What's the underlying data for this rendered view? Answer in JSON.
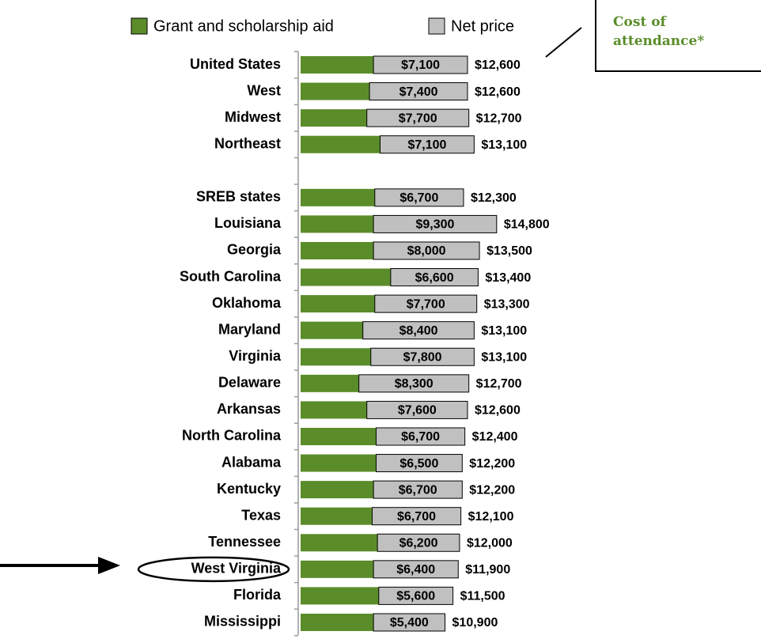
{
  "chart_data": {
    "type": "stacked-barh",
    "categories": [
      "United States",
      "West",
      "Midwest",
      "Northeast",
      null,
      "SREB states",
      "Louisiana",
      "Georgia",
      "South Carolina",
      "Oklahoma",
      "Maryland",
      "Virginia",
      "Delaware",
      "Arkansas",
      "North Carolina",
      "Alabama",
      "Kentucky",
      "Texas",
      "Tennessee",
      "West Virginia",
      "Florida",
      "Mississippi"
    ],
    "series": [
      {
        "name": "Grant and scholarship aid",
        "color": "#5b8c2a",
        "values": [
          5500,
          5200,
          5000,
          6000,
          null,
          5600,
          5500,
          5500,
          6800,
          5600,
          4700,
          5300,
          4400,
          5000,
          5700,
          5700,
          5500,
          5400,
          5800,
          5500,
          5900,
          5500
        ]
      },
      {
        "name": "Net price",
        "color": "#c0c0c0",
        "values": [
          7100,
          7400,
          7700,
          7100,
          null,
          6700,
          9300,
          8000,
          6600,
          7700,
          8400,
          7800,
          8300,
          7600,
          6700,
          6500,
          6700,
          6700,
          6200,
          6400,
          5600,
          5400
        ],
        "value_labels": [
          "$7,100",
          "$7,400",
          "$7,700",
          "$7,100",
          null,
          "$6,700",
          "$9,300",
          "$8,000",
          "$6,600",
          "$7,700",
          "$8,400",
          "$7,800",
          "$8,300",
          "$7,600",
          "$6,700",
          "$6,500",
          "$6,700",
          "$6,700",
          "$6,200",
          "$6,400",
          "$5,600",
          "$5,400"
        ]
      }
    ],
    "totals": [
      12600,
      12600,
      12700,
      13100,
      null,
      12300,
      14800,
      13500,
      13400,
      13300,
      13100,
      13100,
      12700,
      12600,
      12400,
      12200,
      12200,
      12100,
      12000,
      11900,
      11500,
      10900
    ],
    "total_labels": [
      "$12,600",
      "$12,600",
      "$12,700",
      "$13,100",
      null,
      "$12,300",
      "$14,800",
      "$13,500",
      "$13,400",
      "$13,300",
      "$13,100",
      "$13,100",
      "$12,700",
      "$12,600",
      "$12,400",
      "$12,200",
      "$12,200",
      "$12,100",
      "$12,000",
      "$11,900",
      "$11,500",
      "$10,900"
    ],
    "annotation": "Cost of attendance*",
    "highlight": "West Virginia"
  }
}
